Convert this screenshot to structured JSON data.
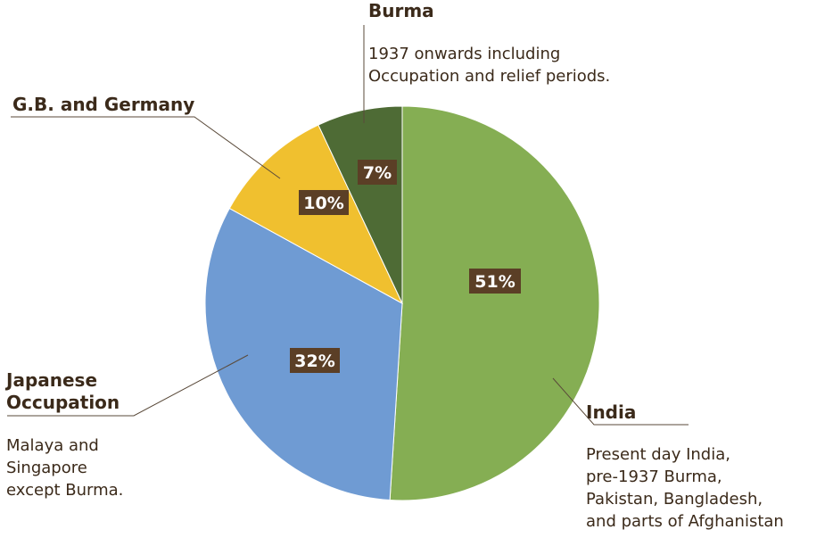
{
  "chart_data": {
    "type": "pie",
    "start_angle_deg": 0,
    "direction": "clockwise",
    "slices": [
      {
        "key": "india",
        "label": "India",
        "value": 51,
        "pct_label": "51%",
        "color": "#85ae53",
        "description": [
          "Present day India,",
          "pre-1937 Burma,",
          "Pakistan, Bangladesh,",
          "and parts of Afghanistan"
        ]
      },
      {
        "key": "japanese",
        "label": "Japanese Occupation",
        "value": 32,
        "pct_label": "32%",
        "color": "#6f9bd3",
        "description": [
          "Malaya and",
          "Singapore",
          "except Burma."
        ]
      },
      {
        "key": "gb",
        "label": "G.B. and Germany",
        "value": 10,
        "pct_label": "10%",
        "color": "#f0c02f",
        "description": []
      },
      {
        "key": "burma",
        "label": "Burma",
        "value": 7,
        "pct_label": "7%",
        "color": "#4e6b35",
        "description": [
          "1937 onwards including",
          "Occupation and relief periods."
        ]
      }
    ],
    "pct_label_bg": "#5b3f26"
  }
}
